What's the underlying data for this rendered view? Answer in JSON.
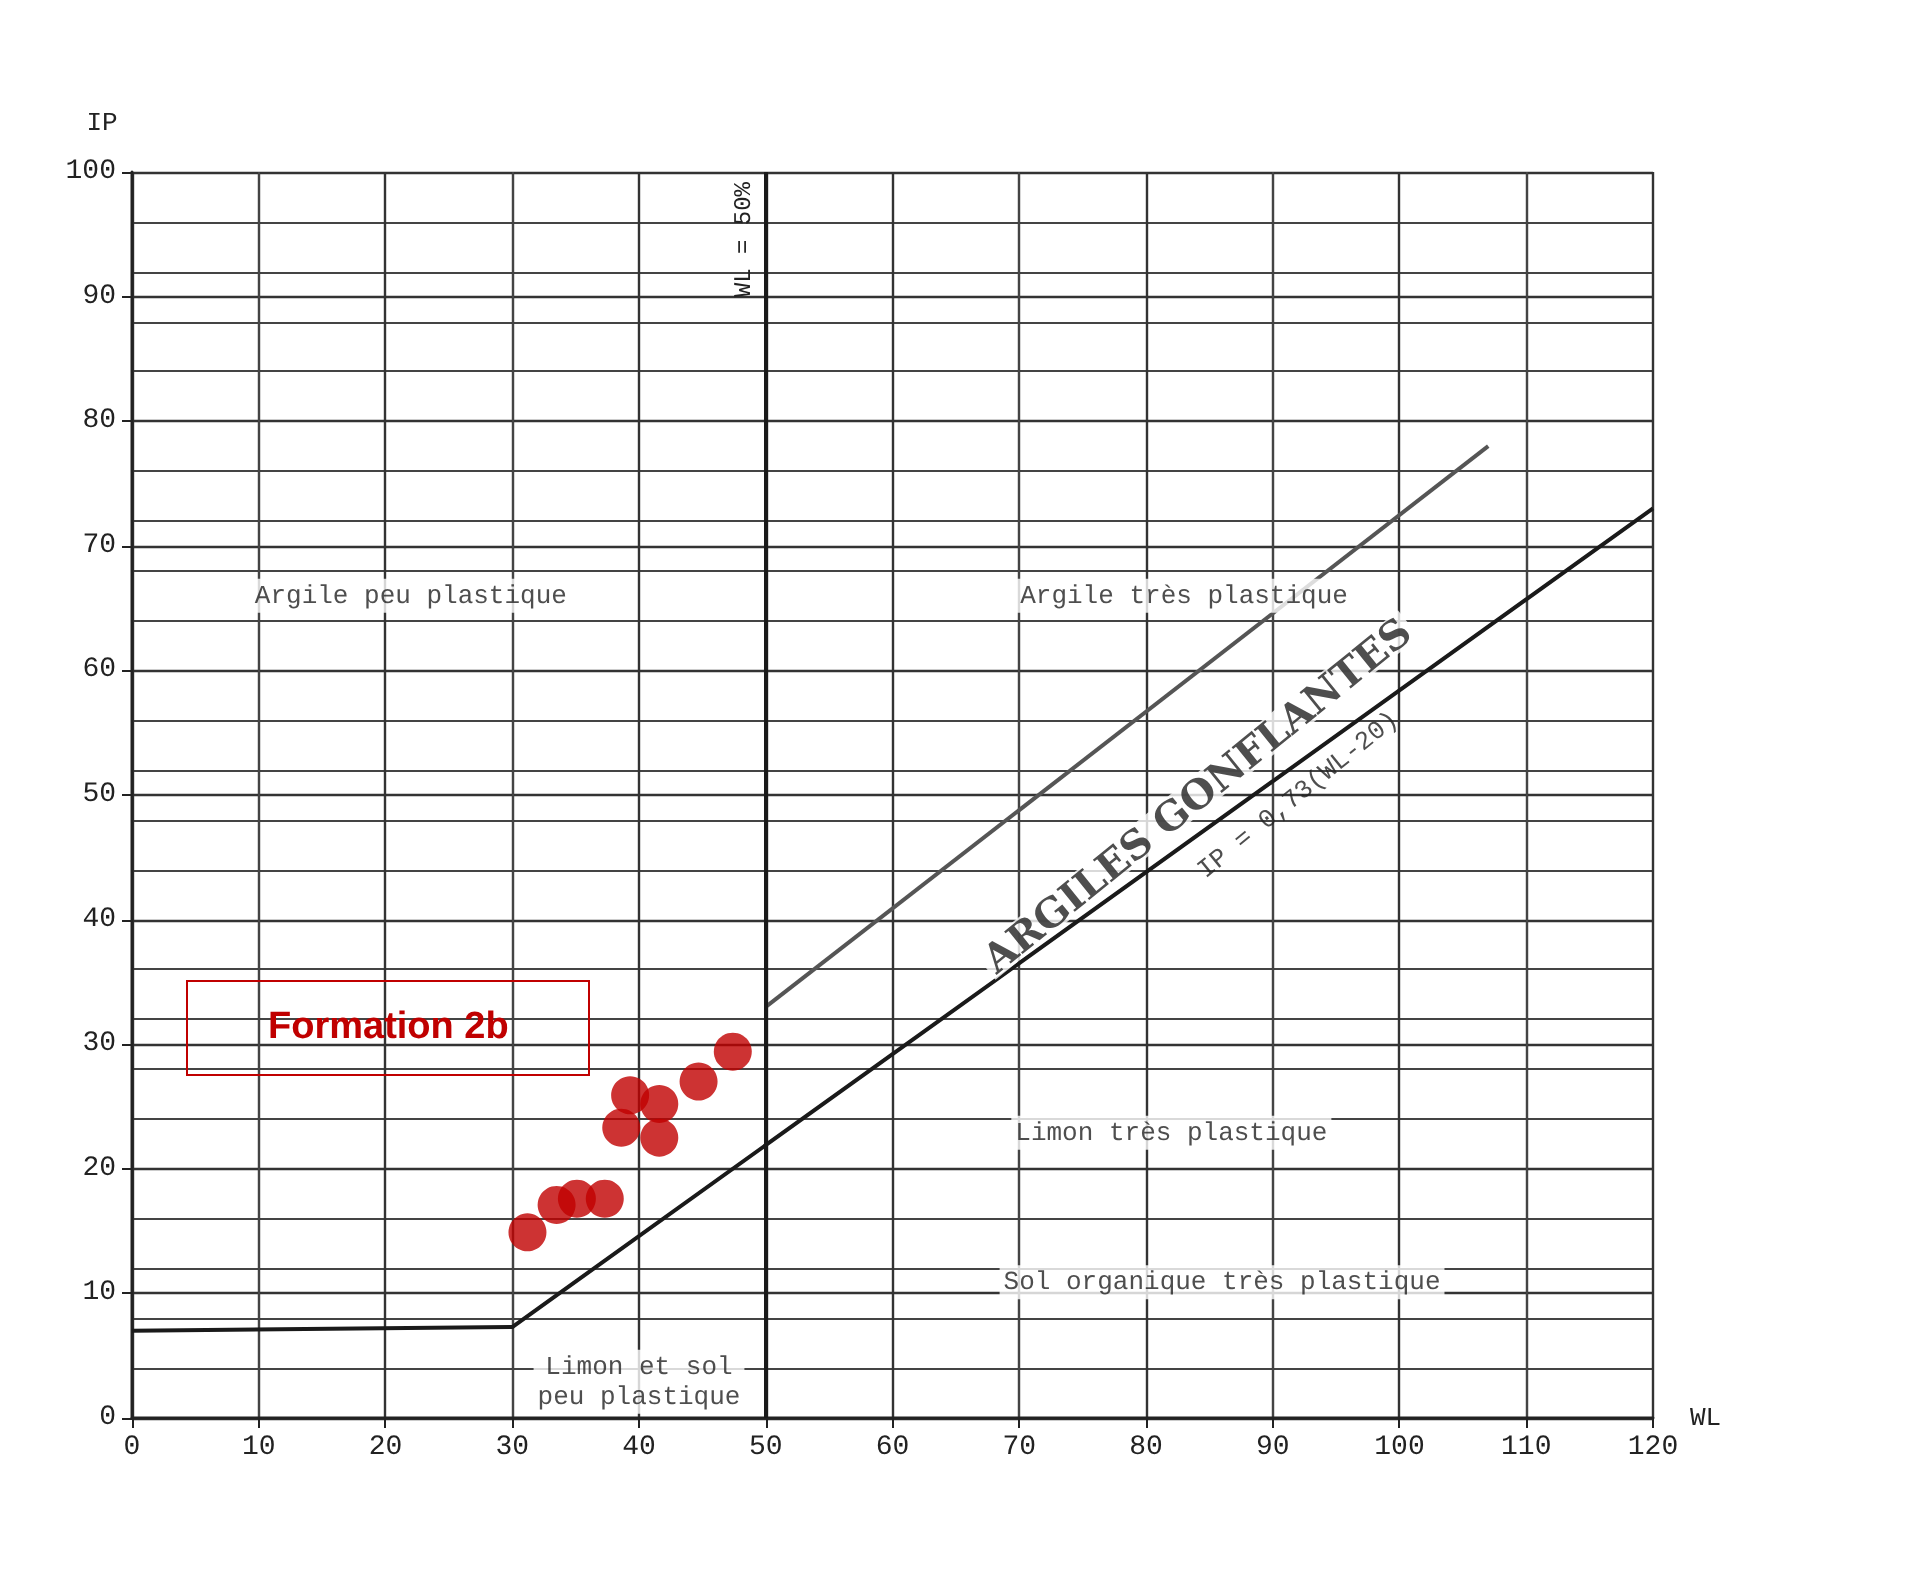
{
  "chart_data": {
    "type": "scatter",
    "xlabel": "WL",
    "ylabel": "IP",
    "xlim": [
      0,
      120
    ],
    "ylim": [
      0,
      100
    ],
    "xticks": [
      0,
      10,
      20,
      30,
      40,
      50,
      60,
      70,
      80,
      90,
      100,
      110,
      120
    ],
    "yticks": [
      0,
      10,
      20,
      30,
      40,
      50,
      60,
      70,
      80,
      90,
      100
    ],
    "grid": true,
    "series": [
      {
        "marker": "circle",
        "color": "#c00000",
        "x": [
          31.2,
          33.5,
          35.1,
          37.3,
          38.6,
          39.3,
          41.6,
          41.6,
          44.7,
          47.4
        ],
        "values": [
          14.9,
          17.1,
          17.6,
          17.6,
          23.3,
          25.9,
          25.2,
          22.5,
          27.0,
          29.4
        ]
      },
      {
        "type": "line",
        "marker": "none",
        "color": "#1a1a1a",
        "x": [
          0,
          30,
          120
        ],
        "values": [
          7,
          7.3,
          73
        ]
      },
      {
        "type": "line",
        "marker": "none",
        "color": "#555555",
        "x": [
          50,
          107
        ],
        "values": [
          33,
          78
        ]
      }
    ],
    "ref_lines": [
      {
        "axis": "x",
        "value": 50,
        "label": "WL = 50%",
        "color": "#1a1a1a"
      }
    ],
    "annotations": [
      "Formation 2b",
      "Argile peu plastique",
      "Argile très plastique",
      "ARGILES GONFLANTES",
      "IP = 0,73(WL-20)",
      "Limon très plastique",
      "Sol organique très plastique",
      "Limon et sol\npeu plastique"
    ]
  }
}
